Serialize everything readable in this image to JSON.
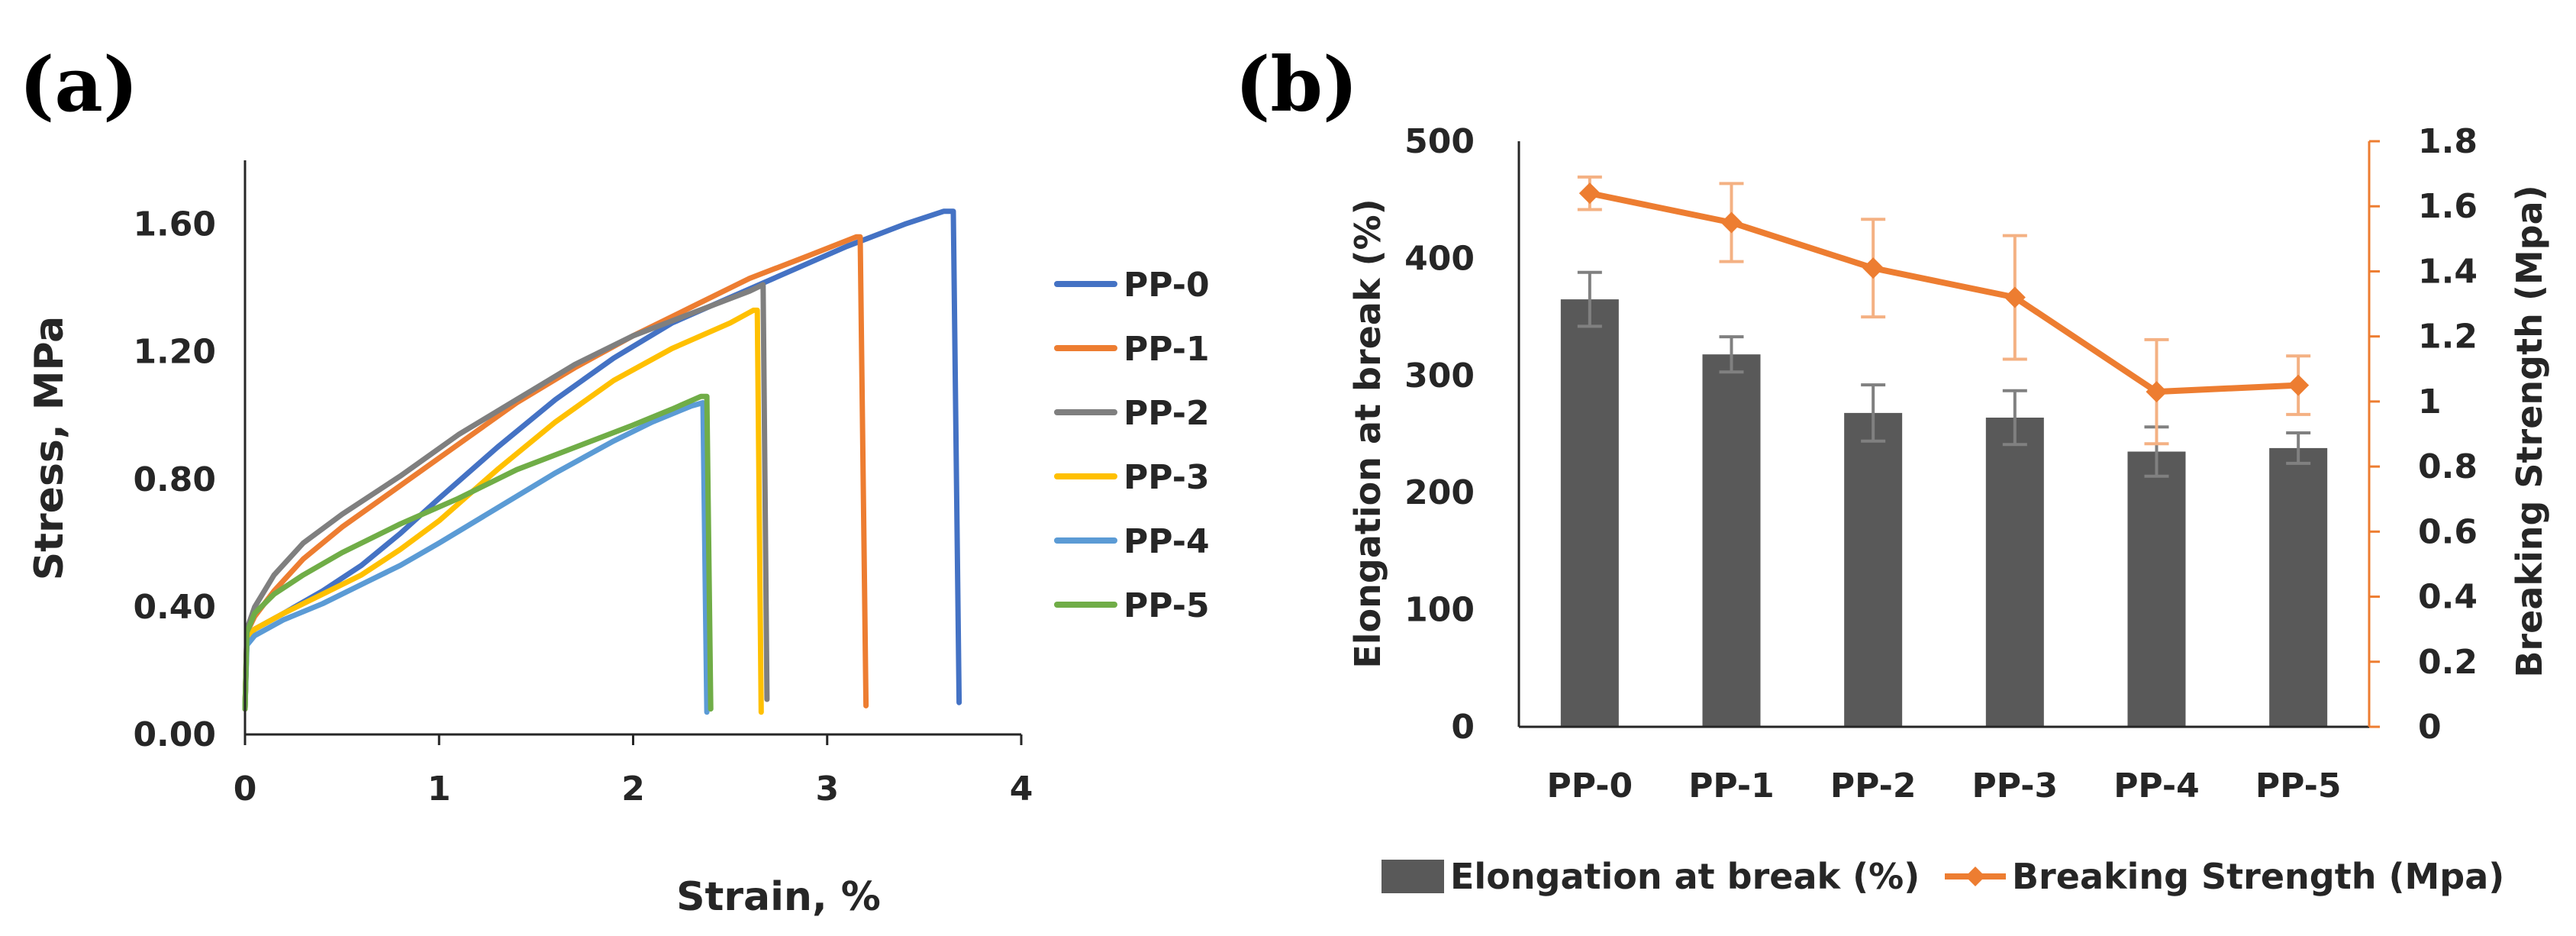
{
  "chart_data": [
    {
      "panel": "(a)",
      "type": "line",
      "xlabel": "Strain, %",
      "ylabel": "Stress, MPa",
      "xlim": [
        0,
        4
      ],
      "ylim": [
        0,
        1.8
      ],
      "xticks": [
        "0",
        "1",
        "2",
        "3",
        "4"
      ],
      "xtick_values": [
        0,
        1,
        2,
        3,
        4
      ],
      "yticks": [
        "0.00",
        "0.40",
        "0.80",
        "1.20",
        "1.60"
      ],
      "ytick_values": [
        0,
        0.4,
        0.8,
        1.2,
        1.6
      ],
      "legend_position": "right",
      "series": [
        {
          "name": "PP-0",
          "color": "#4472C4",
          "points": [
            [
              0,
              0.08
            ],
            [
              0.01,
              0.3
            ],
            [
              0.05,
              0.33
            ],
            [
              0.2,
              0.38
            ],
            [
              0.4,
              0.45
            ],
            [
              0.6,
              0.53
            ],
            [
              0.8,
              0.63
            ],
            [
              1.0,
              0.74
            ],
            [
              1.3,
              0.9
            ],
            [
              1.6,
              1.05
            ],
            [
              1.9,
              1.18
            ],
            [
              2.2,
              1.29
            ],
            [
              2.5,
              1.37
            ],
            [
              2.8,
              1.45
            ],
            [
              3.1,
              1.53
            ],
            [
              3.4,
              1.6
            ],
            [
              3.6,
              1.64
            ],
            [
              3.65,
              1.64
            ],
            [
              3.68,
              0.1
            ]
          ]
        },
        {
          "name": "PP-1",
          "color": "#ED7D31",
          "points": [
            [
              0,
              0.08
            ],
            [
              0.01,
              0.32
            ],
            [
              0.05,
              0.37
            ],
            [
              0.15,
              0.45
            ],
            [
              0.3,
              0.55
            ],
            [
              0.5,
              0.65
            ],
            [
              0.8,
              0.78
            ],
            [
              1.1,
              0.91
            ],
            [
              1.4,
              1.04
            ],
            [
              1.7,
              1.15
            ],
            [
              2.0,
              1.25
            ],
            [
              2.3,
              1.34
            ],
            [
              2.6,
              1.43
            ],
            [
              2.9,
              1.5
            ],
            [
              3.15,
              1.56
            ],
            [
              3.17,
              1.56
            ],
            [
              3.2,
              0.09
            ]
          ]
        },
        {
          "name": "PP-2",
          "color": "#7F7F7F",
          "points": [
            [
              0,
              0.08
            ],
            [
              0.01,
              0.33
            ],
            [
              0.05,
              0.4
            ],
            [
              0.15,
              0.5
            ],
            [
              0.3,
              0.6
            ],
            [
              0.5,
              0.69
            ],
            [
              0.8,
              0.81
            ],
            [
              1.1,
              0.94
            ],
            [
              1.4,
              1.05
            ],
            [
              1.7,
              1.16
            ],
            [
              2.0,
              1.25
            ],
            [
              2.3,
              1.32
            ],
            [
              2.6,
              1.39
            ],
            [
              2.67,
              1.41
            ],
            [
              2.69,
              0.11
            ]
          ]
        },
        {
          "name": "PP-3",
          "color": "#FFC000",
          "points": [
            [
              0,
              0.08
            ],
            [
              0.01,
              0.3
            ],
            [
              0.05,
              0.33
            ],
            [
              0.2,
              0.38
            ],
            [
              0.4,
              0.44
            ],
            [
              0.6,
              0.5
            ],
            [
              0.8,
              0.58
            ],
            [
              1.0,
              0.67
            ],
            [
              1.3,
              0.83
            ],
            [
              1.6,
              0.98
            ],
            [
              1.9,
              1.11
            ],
            [
              2.2,
              1.21
            ],
            [
              2.5,
              1.29
            ],
            [
              2.62,
              1.33
            ],
            [
              2.64,
              1.33
            ],
            [
              2.66,
              0.07
            ]
          ]
        },
        {
          "name": "PP-4",
          "color": "#5B9BD5",
          "points": [
            [
              0,
              0.08
            ],
            [
              0.01,
              0.28
            ],
            [
              0.05,
              0.31
            ],
            [
              0.2,
              0.36
            ],
            [
              0.4,
              0.41
            ],
            [
              0.6,
              0.47
            ],
            [
              0.8,
              0.53
            ],
            [
              1.0,
              0.6
            ],
            [
              1.3,
              0.71
            ],
            [
              1.6,
              0.82
            ],
            [
              1.9,
              0.92
            ],
            [
              2.1,
              0.98
            ],
            [
              2.3,
              1.03
            ],
            [
              2.36,
              1.04
            ],
            [
              2.38,
              0.07
            ]
          ]
        },
        {
          "name": "PP-5",
          "color": "#70AD47",
          "points": [
            [
              0,
              0.08
            ],
            [
              0.01,
              0.32
            ],
            [
              0.05,
              0.38
            ],
            [
              0.15,
              0.44
            ],
            [
              0.3,
              0.5
            ],
            [
              0.5,
              0.57
            ],
            [
              0.8,
              0.66
            ],
            [
              1.1,
              0.74
            ],
            [
              1.4,
              0.83
            ],
            [
              1.7,
              0.9
            ],
            [
              2.0,
              0.97
            ],
            [
              2.2,
              1.02
            ],
            [
              2.35,
              1.06
            ],
            [
              2.38,
              1.06
            ],
            [
              2.4,
              0.08
            ]
          ]
        }
      ]
    },
    {
      "panel": "(b)",
      "type": "bar",
      "categories": [
        "PP-0",
        "PP-1",
        "PP-2",
        "PP-3",
        "PP-4",
        "PP-5"
      ],
      "series": [
        {
          "name": "Elongation at break (%)",
          "axis": "left",
          "type": "bar",
          "color": "#595959",
          "error_color": "#808080",
          "values": [
            365,
            318,
            268,
            264,
            235,
            238
          ],
          "errors": [
            23,
            15,
            24,
            23,
            21,
            13
          ]
        },
        {
          "name": "Breaking Strength (Mpa)",
          "axis": "right",
          "type": "line",
          "color": "#ED7D31",
          "error_color": "#F4B183",
          "values": [
            1.64,
            1.55,
            1.41,
            1.32,
            1.03,
            1.05
          ],
          "errors": [
            0.05,
            0.12,
            0.15,
            0.19,
            0.16,
            0.09
          ]
        }
      ],
      "ylabel": "Elongation at break (%)",
      "ylim": [
        0,
        500
      ],
      "yticks": [
        "0",
        "100",
        "200",
        "300",
        "400",
        "500"
      ],
      "ytick_values": [
        0,
        100,
        200,
        300,
        400,
        500
      ],
      "y2label": "Breaking Strength (Mpa)",
      "y2lim": [
        0,
        1.8
      ],
      "y2ticks": [
        "0",
        "0.2",
        "0.4",
        "0.6",
        "0.8",
        "1",
        "1.2",
        "1.4",
        "1.6",
        "1.8"
      ],
      "y2tick_values": [
        0,
        0.2,
        0.4,
        0.6,
        0.8,
        1.0,
        1.2,
        1.4,
        1.6,
        1.8
      ],
      "legend_position": "bottom"
    }
  ]
}
